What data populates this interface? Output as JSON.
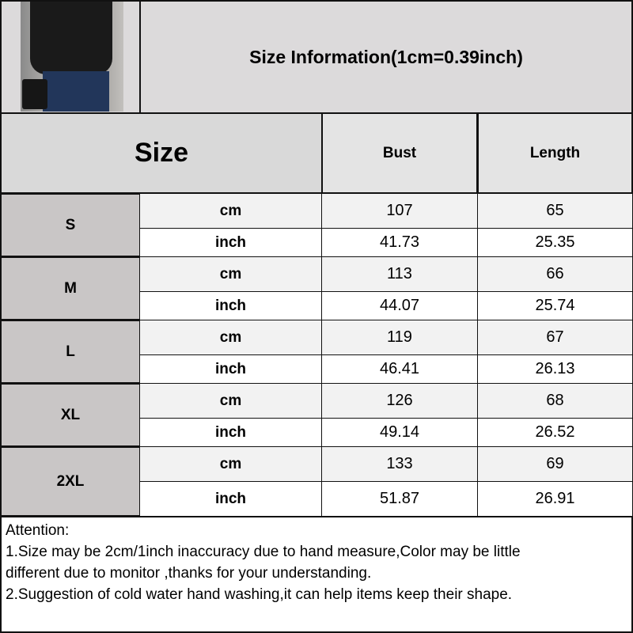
{
  "header": {
    "title": "Size Information(1cm=0.39inch)"
  },
  "table": {
    "size_header": "Size",
    "columns": [
      "Bust",
      "Length"
    ],
    "rows": [
      {
        "size": "S",
        "cm_label": "cm",
        "inch_label": "inch",
        "bust_cm": "107",
        "length_cm": "65",
        "bust_inch": "41.73",
        "length_inch": "25.35"
      },
      {
        "size": "M",
        "cm_label": "cm",
        "inch_label": "inch",
        "bust_cm": "113",
        "length_cm": "66",
        "bust_inch": "44.07",
        "length_inch": "25.74"
      },
      {
        "size": "L",
        "cm_label": "cm",
        "inch_label": "inch",
        "bust_cm": "119",
        "length_cm": "67",
        "bust_inch": "46.41",
        "length_inch": "26.13"
      },
      {
        "size": "XL",
        "cm_label": "cm",
        "inch_label": "inch",
        "bust_cm": "126",
        "length_cm": "68",
        "bust_inch": "49.14",
        "length_inch": "26.52"
      },
      {
        "size": "2XL",
        "cm_label": "cm",
        "inch_label": "inch",
        "bust_cm": "133",
        "length_cm": "69",
        "bust_inch": "51.87",
        "length_inch": "26.91"
      }
    ]
  },
  "notes": {
    "heading": "Attention:",
    "lines": [
      "1.Size may be 2cm/1inch inaccuracy due to hand measure,Color may be little",
      "different due to monitor ,thanks for your understanding.",
      "2.Suggestion of cold water hand washing,it can help items keep their shape."
    ]
  }
}
